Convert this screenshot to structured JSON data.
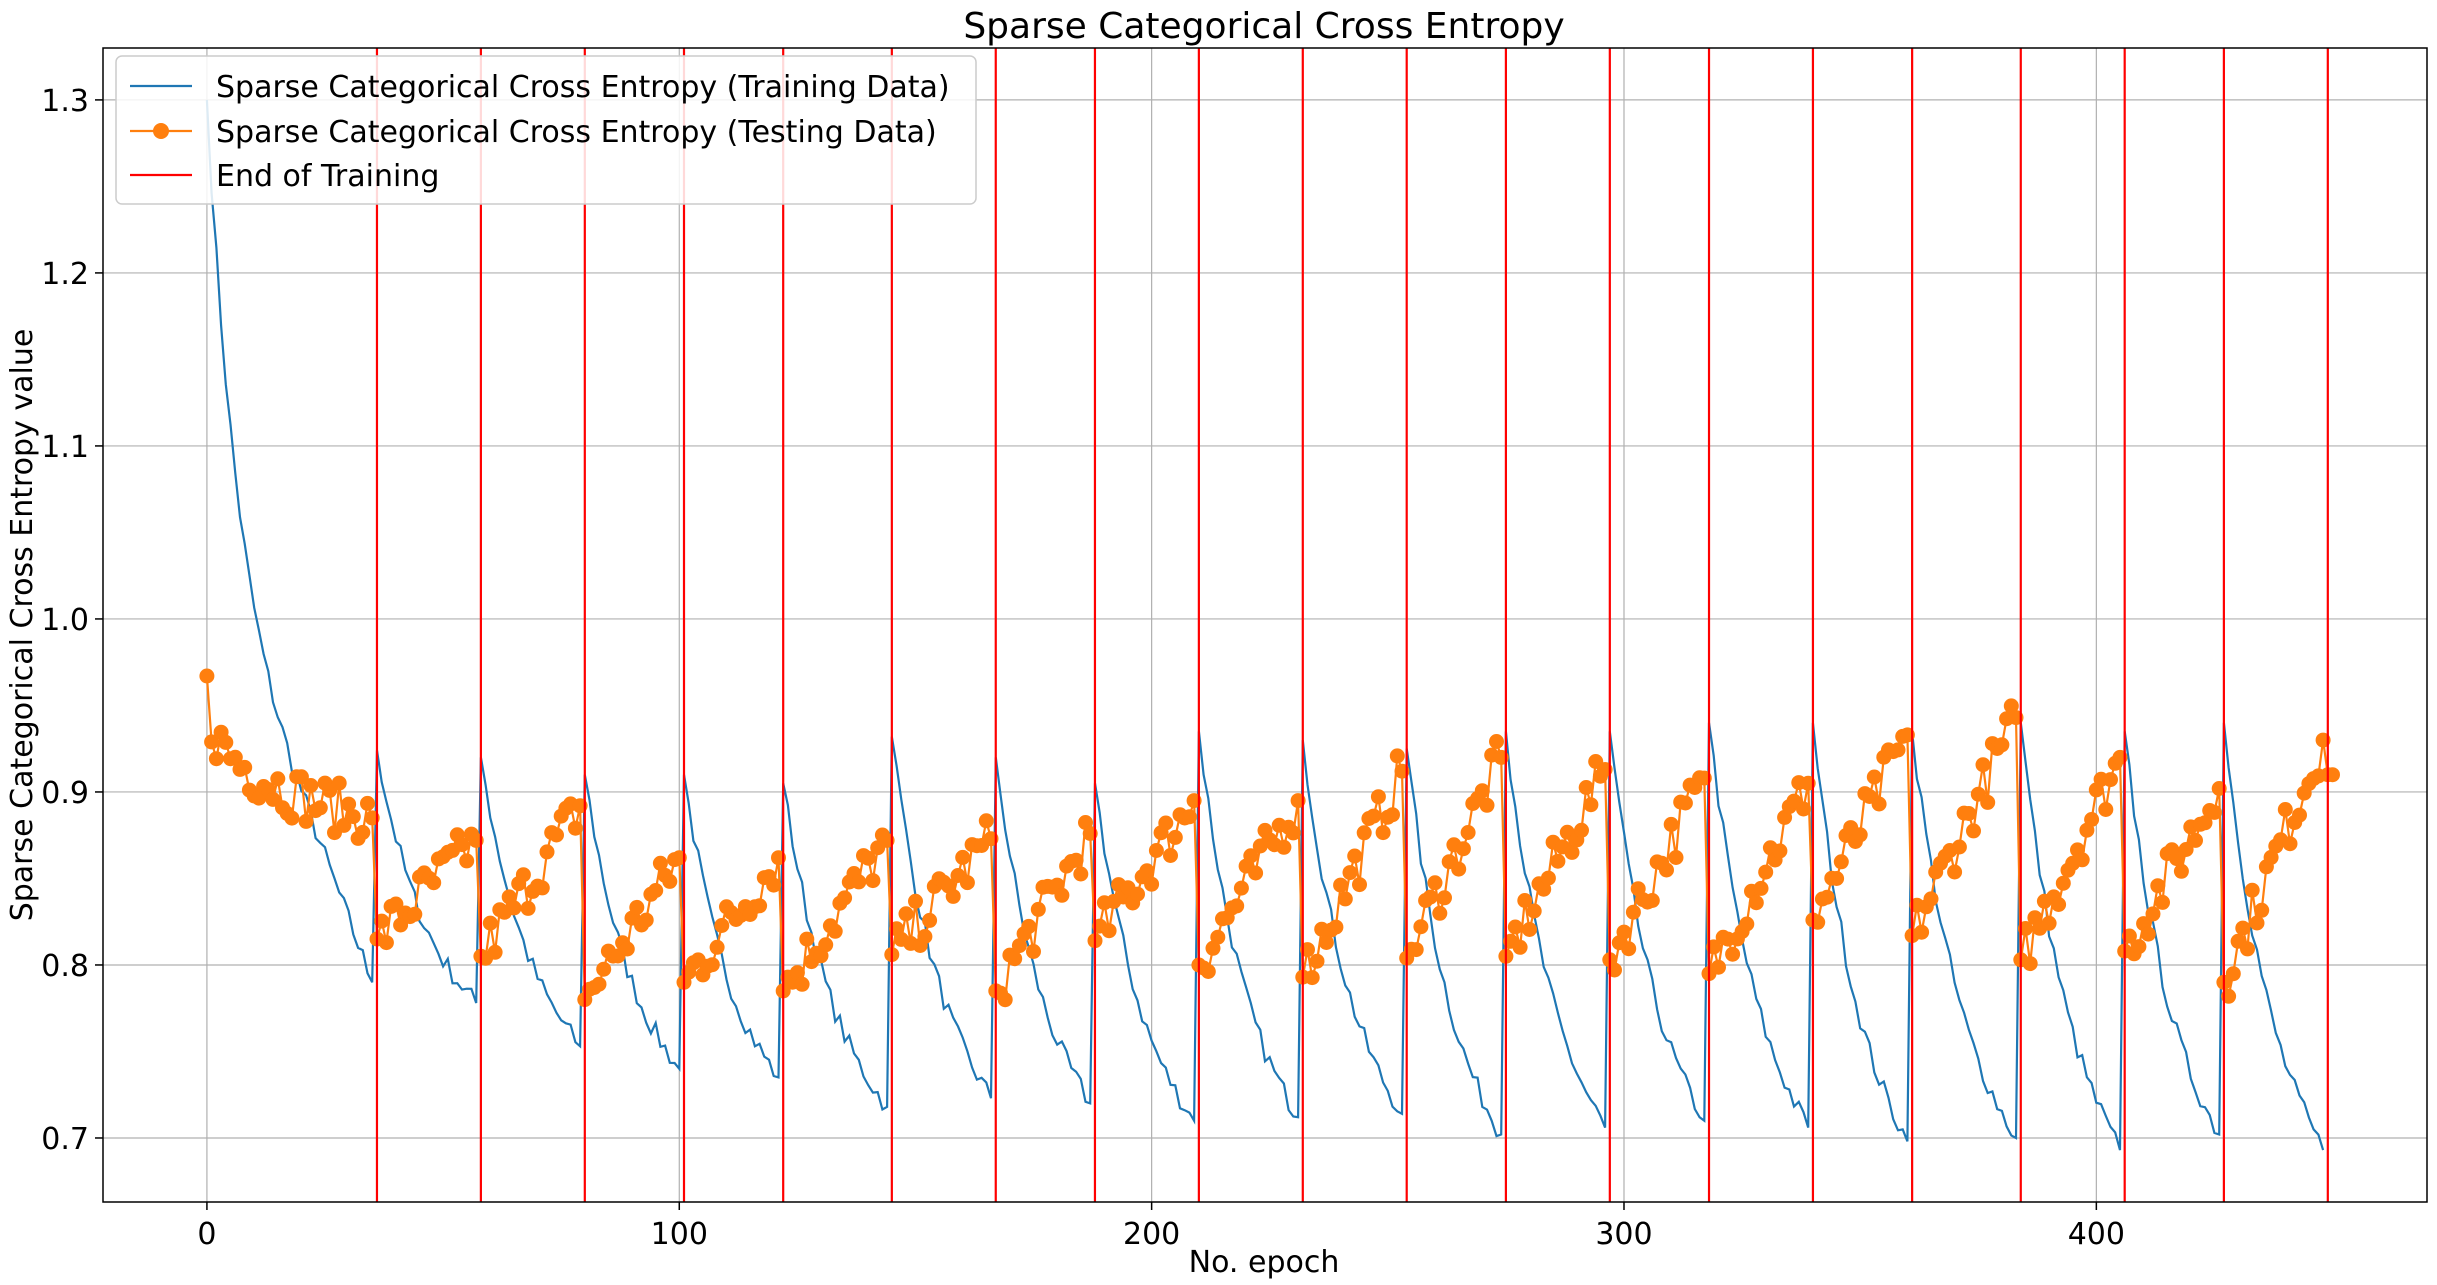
{
  "chart_data": {
    "type": "line",
    "title": "Sparse Categorical Cross Entropy",
    "xlabel": "No. epoch",
    "ylabel": "Sparse Categorical Cross Entropy value",
    "xlim": [
      -22,
      470
    ],
    "ylim": [
      0.663,
      1.33
    ],
    "xticks": [
      0,
      100,
      200,
      300,
      400
    ],
    "xtick_labels": [
      "0",
      "100",
      "200",
      "300",
      "400"
    ],
    "yticks": [
      0.7,
      0.8,
      0.9,
      1.0,
      1.1,
      1.2,
      1.3
    ],
    "ytick_labels": [
      "0.7",
      "0.8",
      "0.9",
      "1.0",
      "1.1",
      "1.2",
      "1.3"
    ],
    "grid": true,
    "legend_position": "top-left",
    "segment_starts": [
      0,
      36,
      58,
      80,
      101,
      122,
      145,
      167,
      188,
      210,
      232,
      254,
      275,
      297,
      318,
      340,
      361,
      384,
      406,
      427,
      449
    ],
    "series": [
      {
        "name": "Sparse Categorical Cross Entropy (Training Data)",
        "color": "#1f77b4",
        "marker": "none",
        "segment_endpoints": [
          {
            "start": 1.3,
            "end": 0.79
          },
          {
            "start": 0.924,
            "end": 0.778
          },
          {
            "start": 0.92,
            "end": 0.753
          },
          {
            "start": 0.91,
            "end": 0.74
          },
          {
            "start": 0.91,
            "end": 0.735
          },
          {
            "start": 0.905,
            "end": 0.718
          },
          {
            "start": 0.932,
            "end": 0.723
          },
          {
            "start": 0.92,
            "end": 0.72
          },
          {
            "start": 0.905,
            "end": 0.71
          },
          {
            "start": 0.935,
            "end": 0.712
          },
          {
            "start": 0.93,
            "end": 0.714
          },
          {
            "start": 0.925,
            "end": 0.702
          },
          {
            "start": 0.935,
            "end": 0.706
          },
          {
            "start": 0.935,
            "end": 0.71
          },
          {
            "start": 0.94,
            "end": 0.706
          },
          {
            "start": 0.94,
            "end": 0.698
          },
          {
            "start": 0.935,
            "end": 0.7
          },
          {
            "start": 0.94,
            "end": 0.693
          },
          {
            "start": 0.935,
            "end": 0.702
          },
          {
            "start": 0.94,
            "end": 0.693
          }
        ]
      },
      {
        "name": "Sparse Categorical Cross Entropy (Testing Data)",
        "color": "#ff7f0e",
        "marker": "circle",
        "segment_endpoints": [
          {
            "start": 0.967,
            "end": 0.885
          },
          {
            "start": 0.815,
            "end": 0.872
          },
          {
            "start": 0.805,
            "end": 0.892
          },
          {
            "start": 0.78,
            "end": 0.862
          },
          {
            "start": 0.79,
            "end": 0.862
          },
          {
            "start": 0.785,
            "end": 0.872
          },
          {
            "start": 0.806,
            "end": 0.873
          },
          {
            "start": 0.785,
            "end": 0.876
          },
          {
            "start": 0.814,
            "end": 0.895
          },
          {
            "start": 0.8,
            "end": 0.895
          },
          {
            "start": 0.793,
            "end": 0.912
          },
          {
            "start": 0.804,
            "end": 0.92
          },
          {
            "start": 0.805,
            "end": 0.913
          },
          {
            "start": 0.803,
            "end": 0.908
          },
          {
            "start": 0.795,
            "end": 0.905
          },
          {
            "start": 0.826,
            "end": 0.933
          },
          {
            "start": 0.817,
            "end": 0.943
          },
          {
            "start": 0.803,
            "end": 0.92
          },
          {
            "start": 0.808,
            "end": 0.902
          },
          {
            "start": 0.79,
            "end": 0.93
          },
          {
            "start": 0.91,
            "end": 0.91
          }
        ]
      },
      {
        "name": "End of Training",
        "color": "#ff0000",
        "marker": "none",
        "vlines": [
          36,
          58,
          80,
          101,
          122,
          145,
          167,
          188,
          210,
          232,
          254,
          275,
          297,
          318,
          340,
          361,
          384,
          406,
          427,
          449
        ]
      }
    ]
  }
}
